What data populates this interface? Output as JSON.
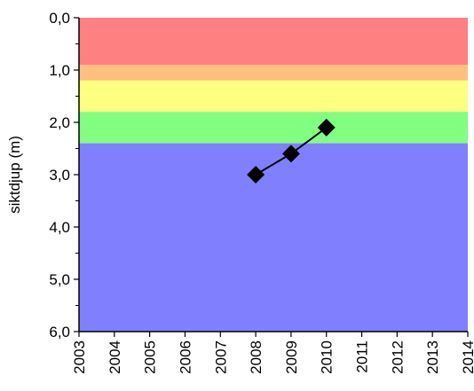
{
  "chart_data": {
    "type": "line",
    "title": "",
    "xlabel": "",
    "ylabel": "siktdjup (m)",
    "xlim": [
      2003,
      2014
    ],
    "ylim": [
      0,
      6
    ],
    "y_inverted": true,
    "grid": false,
    "x_ticks": [
      "2003",
      "2004",
      "2005",
      "2006",
      "2007",
      "2008",
      "2009",
      "2010",
      "2011",
      "2012",
      "2013",
      "2014"
    ],
    "y_ticks": [
      {
        "value": 0,
        "label": "0,0"
      },
      {
        "value": 1,
        "label": "1,0"
      },
      {
        "value": 2,
        "label": "2,0"
      },
      {
        "value": 3,
        "label": "3,0"
      },
      {
        "value": 4,
        "label": "4,0"
      },
      {
        "value": 5,
        "label": "5,0"
      },
      {
        "value": 6,
        "label": "6,0"
      }
    ],
    "bands": [
      {
        "from": 0.0,
        "to": 0.9,
        "color": "#ff8080"
      },
      {
        "from": 0.9,
        "to": 1.2,
        "color": "#ffbf80"
      },
      {
        "from": 1.2,
        "to": 1.8,
        "color": "#ffff80"
      },
      {
        "from": 1.8,
        "to": 2.4,
        "color": "#80ff80"
      },
      {
        "from": 2.4,
        "to": 6.0,
        "color": "#8080ff"
      }
    ],
    "series": [
      {
        "x": [
          2008,
          2009,
          2010
        ],
        "y": [
          3.0,
          2.6,
          2.1
        ],
        "color": "#000000",
        "marker": "diamond"
      }
    ]
  }
}
